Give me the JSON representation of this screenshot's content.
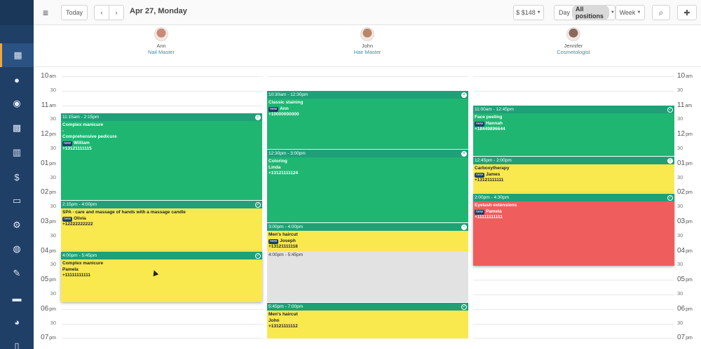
{
  "toolbar": {
    "menu_icon": "hamburger-icon",
    "today_label": "Today",
    "date_title": "Apr 27, Monday",
    "revenue_label": "$ $148",
    "day_label": "Day",
    "positions_label": "All positions",
    "week_label": "Week",
    "zoom_icon": "zoom-icon",
    "add_user_icon": "add-user-icon"
  },
  "sidebar": {
    "items": [
      {
        "icon": "calendar-icon",
        "glyph": "▦"
      },
      {
        "icon": "user-icon",
        "glyph": "●"
      },
      {
        "icon": "users-icon",
        "glyph": "◉"
      },
      {
        "icon": "dashboard-icon",
        "glyph": "▩"
      },
      {
        "icon": "chart-icon",
        "glyph": "▥"
      },
      {
        "icon": "dollar-icon",
        "glyph": "$"
      },
      {
        "icon": "id-card-icon",
        "glyph": "▭"
      },
      {
        "icon": "network-icon",
        "glyph": "⚙"
      },
      {
        "icon": "globe-icon",
        "glyph": "◍"
      },
      {
        "icon": "wrench-icon",
        "glyph": "✎"
      },
      {
        "icon": "card-icon",
        "glyph": "▬"
      },
      {
        "icon": "gauge-icon",
        "glyph": "◕"
      },
      {
        "icon": "mobile-icon",
        "glyph": "▯"
      }
    ]
  },
  "staff": [
    {
      "name": "Ann",
      "role": "Nail Master",
      "avatar_color": "#c98a76"
    },
    {
      "name": "John",
      "role": "Hair Master",
      "avatar_color": "#b98768"
    },
    {
      "name": "Jennifer",
      "role": "Cosmetologist",
      "avatar_color": "#8a6a5a"
    }
  ],
  "times": [
    {
      "hour": "10",
      "ap": "am"
    },
    {
      "half": "30"
    },
    {
      "hour": "11",
      "ap": "am"
    },
    {
      "half": "30"
    },
    {
      "hour": "12",
      "ap": "pm"
    },
    {
      "half": "30"
    },
    {
      "hour": "01",
      "ap": "pm"
    },
    {
      "half": "30"
    },
    {
      "hour": "02",
      "ap": "pm"
    },
    {
      "half": "30"
    },
    {
      "hour": "03",
      "ap": "pm"
    },
    {
      "half": "30"
    },
    {
      "hour": "04",
      "ap": "pm"
    },
    {
      "half": "30"
    },
    {
      "hour": "05",
      "ap": "pm"
    },
    {
      "half": "30"
    },
    {
      "hour": "06",
      "ap": "pm"
    },
    {
      "half": "30"
    },
    {
      "hour": "07",
      "ap": "pm"
    }
  ],
  "appointments": {
    "ann_1": {
      "time": "11:15am - 2:15pm",
      "lines": [
        "Complex manicure",
        "-",
        "Comprehensive pedicure"
      ],
      "badge": "new",
      "client": "William",
      "phone": "+13121111115",
      "status_icon": "info-icon",
      "status_glyph": "!"
    },
    "ann_2": {
      "time": "2:15pm - 4:00pm",
      "lines": [
        "SPA - care and massage of hands with a massage candle"
      ],
      "badge": "new",
      "client": "Olivia",
      "phone": "+12222222222",
      "status_icon": "check-icon",
      "status_glyph": "✓"
    },
    "ann_3": {
      "time": "4:00pm - 5:45pm",
      "lines": [
        "Complex manicure"
      ],
      "badge": "",
      "client": "Pamela",
      "phone": "+11111111111",
      "status_icon": "check-icon",
      "status_glyph": "✓"
    },
    "john_1": {
      "time": "10:30am - 12:30pm",
      "lines": [
        "Classic staining"
      ],
      "badge": "new",
      "client": "Ann",
      "phone": "+10000000000",
      "status_icon": "plus-icon",
      "status_glyph": "+"
    },
    "john_2": {
      "time": "12:30pm - 3:00pm",
      "lines": [
        "Coloring"
      ],
      "badge": "",
      "client": "Linda",
      "phone": "+13121111124",
      "status_icon": "plus-icon",
      "status_glyph": "+"
    },
    "john_3": {
      "time": "3:00pm - 4:00pm",
      "lines": [
        "Men's haircut"
      ],
      "badge": "new",
      "client": "Joseph",
      "phone": "+13121111118",
      "status_icon": "minus-icon",
      "status_glyph": "−"
    },
    "john_block": {
      "time": "4:00pm - 5:45pm"
    },
    "john_4": {
      "time": "5:45pm - 7:00pm",
      "lines": [
        "Men's haircut"
      ],
      "badge": "",
      "client": "John",
      "phone": "+13121111112",
      "status_icon": "check-icon",
      "status_glyph": "✓"
    },
    "jen_1": {
      "time": "11:00am - 12:45pm",
      "lines": [
        "Face peeling"
      ],
      "badge": "new",
      "client": "Hannah",
      "phone": "+18449896644",
      "status_icon": "check-icon",
      "status_glyph": "✓"
    },
    "jen_2": {
      "time": "12:45pm - 2:00pm",
      "lines": [
        "Carboxytherapy"
      ],
      "badge": "new",
      "client": "James",
      "phone": "+13121111111",
      "status_icon": "info-icon",
      "status_glyph": "!"
    },
    "jen_3": {
      "time": "2:00pm - 4:30pm",
      "lines": [
        "Eyelash extensions"
      ],
      "badge": "new",
      "client": "Pamela",
      "phone": "+11111111111",
      "status_icon": "check-icon",
      "status_glyph": "✓"
    }
  }
}
